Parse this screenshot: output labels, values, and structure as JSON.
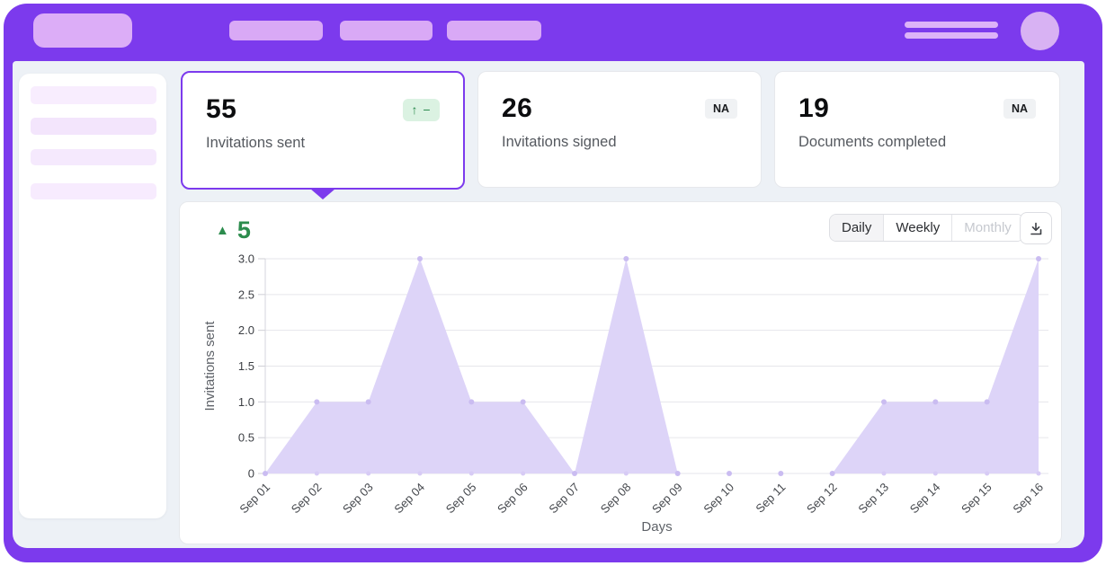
{
  "colors": {
    "frame_purple": "#7c3aed",
    "content_bg": "#edf1f6",
    "selected_border": "#7c3aed",
    "trend_green": "#2b8a4e",
    "trend_badge_bg": "#dbf2e2",
    "na_badge_bg": "#f0f2f4"
  },
  "stats": [
    {
      "value": "55",
      "label": "Invitations sent",
      "badge": "↑ −",
      "badge_type": "trend-up",
      "selected": true
    },
    {
      "value": "26",
      "label": "Invitations signed",
      "badge": "NA",
      "badge_type": "na",
      "selected": false
    },
    {
      "value": "19",
      "label": "Documents completed",
      "badge": "NA",
      "badge_type": "na",
      "selected": false
    }
  ],
  "chart_controls": {
    "delta_icon": "▲",
    "delta_value": "5",
    "ranges": [
      {
        "label": "Daily",
        "state": "selected"
      },
      {
        "label": "Weekly",
        "state": "default"
      },
      {
        "label": "Monthly",
        "state": "disabled"
      }
    ],
    "download_icon": "download-icon"
  },
  "chart_data": {
    "type": "area",
    "x": [
      "Sep 01",
      "Sep 02",
      "Sep 03",
      "Sep 04",
      "Sep 05",
      "Sep 06",
      "Sep 07",
      "Sep 08",
      "Sep 09",
      "Sep 10",
      "Sep 11",
      "Sep 12",
      "Sep 13",
      "Sep 14",
      "Sep 15",
      "Sep 16"
    ],
    "series": [
      {
        "name": "Invitations sent",
        "values": [
          0,
          1,
          1,
          3,
          1,
          1,
          0,
          3,
          0,
          0,
          0,
          0,
          1,
          1,
          1,
          3
        ]
      }
    ],
    "xlabel": "Days",
    "ylabel": "Invitations sent",
    "ylim": [
      0,
      3
    ],
    "yticks": [
      0,
      0.5,
      1,
      1.5,
      2,
      2.5,
      3
    ],
    "ytick_labels": [
      "0",
      "0.5",
      "1.0",
      "1.5",
      "2.0",
      "2.5",
      "3.0"
    ],
    "grid": "horizontal",
    "legend": "none",
    "fill_color": "#ddd4f8",
    "point_color": "#cabcf1",
    "baseline_dot_color": "#d7cbf5",
    "grid_color": "#e6e6eb",
    "axis_color": "#d6d6dc",
    "tick_mark_color": "#cfcfd6",
    "tick_text_color": "#3b3e43",
    "xtick_text_color": "#45484d",
    "axis_title_color": "#5e6268"
  }
}
